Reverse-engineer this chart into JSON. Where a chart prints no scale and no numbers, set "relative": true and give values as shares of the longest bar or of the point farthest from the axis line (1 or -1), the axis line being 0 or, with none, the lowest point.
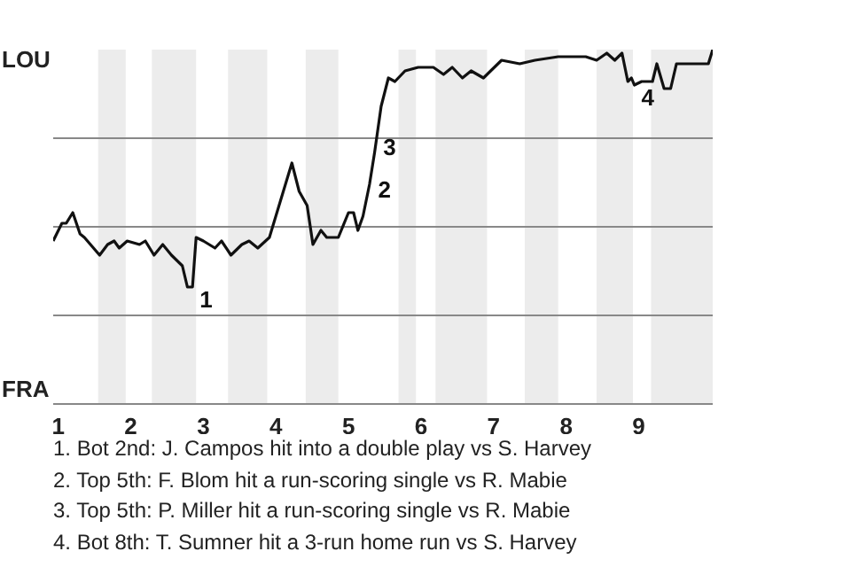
{
  "chart_data": {
    "type": "line",
    "x": [
      0.93,
      1.05,
      1.11,
      1.2,
      1.3,
      1.36,
      1.57,
      1.68,
      1.77,
      1.84,
      1.95,
      2.12,
      2.2,
      2.32,
      2.44,
      2.56,
      2.71,
      2.78,
      2.85,
      2.9,
      3.0,
      3.16,
      3.25,
      3.38,
      3.53,
      3.63,
      3.75,
      3.91,
      4.22,
      4.32,
      4.43,
      4.51,
      4.62,
      4.7,
      4.86,
      5.0,
      5.07,
      5.13,
      5.2,
      5.29,
      5.36,
      5.45,
      5.55,
      5.64,
      5.78,
      5.96,
      6.17,
      6.31,
      6.43,
      6.57,
      6.69,
      6.86,
      7.11,
      7.36,
      7.57,
      7.89,
      8.27,
      8.42,
      8.56,
      8.67,
      8.77,
      8.85,
      8.9,
      8.94,
      9.04,
      9.19,
      9.25,
      9.35,
      9.44,
      9.52,
      9.96,
      10.02
    ],
    "series": [
      {
        "color": "#111111",
        "values": [
          0.46,
          0.51,
          0.51,
          0.54,
          0.48,
          0.47,
          0.42,
          0.45,
          0.46,
          0.44,
          0.46,
          0.45,
          0.46,
          0.42,
          0.45,
          0.42,
          0.39,
          0.33,
          0.33,
          0.47,
          0.46,
          0.44,
          0.46,
          0.42,
          0.45,
          0.46,
          0.44,
          0.47,
          0.68,
          0.6,
          0.56,
          0.45,
          0.49,
          0.47,
          0.47,
          0.54,
          0.54,
          0.49,
          0.53,
          0.62,
          0.71,
          0.84,
          0.92,
          0.91,
          0.94,
          0.95,
          0.95,
          0.93,
          0.95,
          0.92,
          0.94,
          0.92,
          0.97,
          0.96,
          0.97,
          0.98,
          0.98,
          0.97,
          0.99,
          0.97,
          0.99,
          0.91,
          0.92,
          0.9,
          0.91,
          0.91,
          0.96,
          0.89,
          0.89,
          0.96,
          0.96,
          1.0
        ]
      }
    ],
    "relative": true,
    "xlim": [
      0.93,
      10.02
    ],
    "xticks": [
      1,
      2,
      3,
      4,
      5,
      6,
      7,
      8,
      9
    ],
    "marker": "none",
    "line_style": "solid",
    "ref_lines": [
      {
        "axis": "y",
        "value": 0.25,
        "color": "#888888"
      },
      {
        "axis": "y",
        "value": 0.5,
        "color": "#888888"
      },
      {
        "axis": "y",
        "value": 0.75,
        "color": "#888888"
      }
    ],
    "bands": [
      {
        "axis": "x",
        "from": 1.55,
        "to": 1.93,
        "color": "#ececec"
      },
      {
        "axis": "x",
        "from": 2.29,
        "to": 2.9,
        "color": "#ececec"
      },
      {
        "axis": "x",
        "from": 3.34,
        "to": 3.88,
        "color": "#ececec"
      },
      {
        "axis": "x",
        "from": 4.41,
        "to": 4.86,
        "color": "#ececec"
      },
      {
        "axis": "x",
        "from": 5.69,
        "to": 5.93,
        "color": "#ececec"
      },
      {
        "axis": "x",
        "from": 6.2,
        "to": 6.91,
        "color": "#ececec"
      },
      {
        "axis": "x",
        "from": 7.43,
        "to": 7.89,
        "color": "#ececec"
      },
      {
        "axis": "x",
        "from": 8.42,
        "to": 8.92,
        "color": "#ececec"
      },
      {
        "axis": "x",
        "from": 9.17,
        "to": 10.02,
        "color": "#ececec"
      }
    ],
    "annotations": [
      "LOU",
      "FRA",
      {
        "text": "1",
        "x": 2.85,
        "y": 0.33
      },
      {
        "text": "2",
        "x": 5.31,
        "y": 0.64
      },
      {
        "text": "3",
        "x": 5.38,
        "y": 0.76
      },
      {
        "text": "4",
        "x": 8.94,
        "y": 0.9
      },
      "1. Bot 2nd: J. Campos hit into a double play vs S. Harvey",
      "2. Top 5th: F. Blom hit a run-scoring single vs R. Mabie",
      "3. Top 5th: P. Miller hit a run-scoring single vs R. Mabie",
      "4. Bot 8th: T. Sumner hit a 3-run home run vs S. Harvey"
    ]
  }
}
